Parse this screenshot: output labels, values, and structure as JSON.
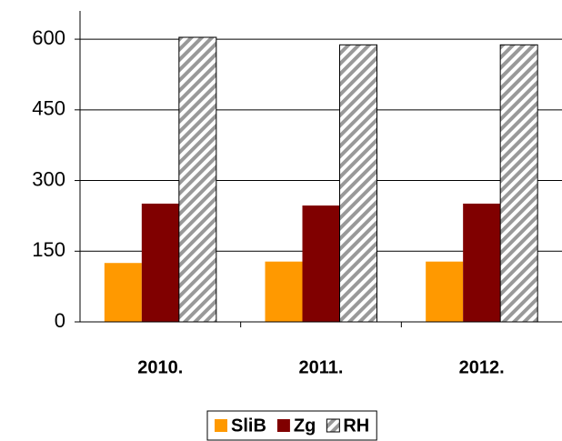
{
  "chart_data": {
    "type": "bar",
    "categories": [
      "2010.",
      "2011.",
      "2012."
    ],
    "series": [
      {
        "name": "SliB",
        "color": "#ff9900",
        "values": [
          125,
          128,
          128
        ]
      },
      {
        "name": "Zg",
        "color": "#800000",
        "values": [
          251,
          247,
          251
        ]
      },
      {
        "name": "RH",
        "color": "#999999",
        "pattern": "hatch",
        "values": [
          604,
          588,
          588
        ]
      }
    ],
    "ylim": [
      0,
      660
    ],
    "yticks": [
      0,
      150,
      300,
      450,
      600
    ],
    "grid": true,
    "legend": "bottom"
  }
}
